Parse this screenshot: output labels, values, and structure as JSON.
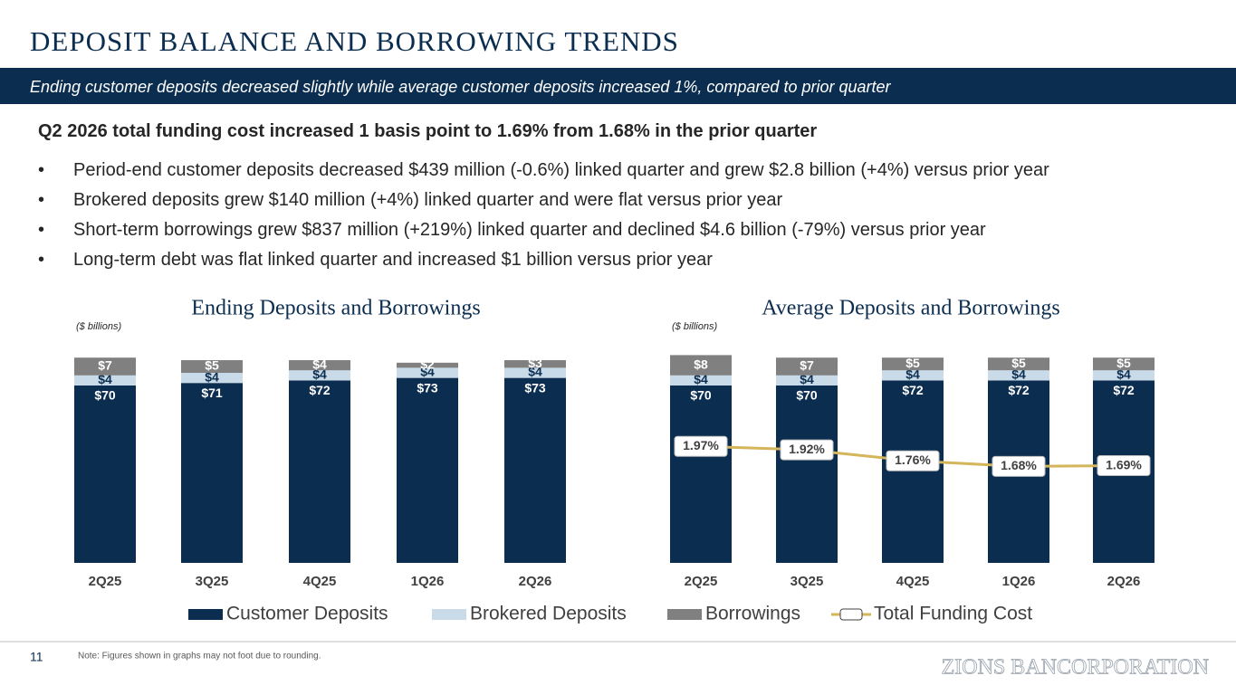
{
  "header": {
    "title": "DEPOSIT BALANCE AND BORROWING TRENDS",
    "subtitle": "Ending customer deposits decreased slightly while average customer deposits increased 1%, compared to prior quarter"
  },
  "headline": "Q2 2026 total funding cost increased 1 basis point to 1.69% from 1.68% in the prior quarter",
  "bullets": [
    "Period-end customer deposits decreased $439 million (-0.6%) linked quarter and grew $2.8 billion (+4%) versus prior year",
    "Brokered deposits grew $140 million (+4%) linked quarter and were flat versus prior year",
    "Short-term borrowings grew $837 million (+219%) linked quarter and declined $4.6 billion (-79%) versus prior year",
    "Long-term debt was flat linked quarter and increased $1 billion versus prior year"
  ],
  "chart_data": [
    {
      "type": "bar",
      "stacked": true,
      "title": "Ending Deposits and Borrowings",
      "unit_label": "($ billions)",
      "categories": [
        "2Q25",
        "3Q25",
        "4Q25",
        "1Q26",
        "2Q26"
      ],
      "series": [
        {
          "name": "Customer Deposits",
          "color": "#0b2d4f",
          "values": [
            70,
            71,
            72,
            73,
            73
          ],
          "value_labels": [
            "$70",
            "$71",
            "$72",
            "$73",
            "$73"
          ]
        },
        {
          "name": "Brokered Deposits",
          "color": "#c9dbe9",
          "values": [
            4,
            4,
            4,
            4,
            4
          ],
          "value_labels": [
            "$4",
            "$4",
            "$4",
            "$4",
            "$4"
          ]
        },
        {
          "name": "Borrowings",
          "color": "#808080",
          "values": [
            7,
            5,
            4,
            2,
            3
          ],
          "value_labels": [
            "$7",
            "$5",
            "$4",
            "$2",
            "$3"
          ]
        }
      ]
    },
    {
      "type": "combo",
      "stacked": true,
      "title": "Average Deposits and Borrowings",
      "unit_label": "($ billions)",
      "categories": [
        "2Q25",
        "3Q25",
        "4Q25",
        "1Q26",
        "2Q26"
      ],
      "series": [
        {
          "color": "#0b2d4f",
          "values": [
            70,
            70,
            72,
            72,
            72
          ],
          "value_labels": [
            "$70",
            "$70",
            "$72",
            "$72",
            "$72"
          ]
        },
        {
          "color": "#c9dbe9",
          "values": [
            4,
            4,
            4,
            4,
            4
          ],
          "value_labels": [
            "$4",
            "$4",
            "$4",
            "$4",
            "$4"
          ]
        },
        {
          "color": "#808080",
          "values": [
            8,
            7,
            5,
            5,
            5
          ],
          "value_labels": [
            "$8",
            "$7",
            "$5",
            "$5",
            "$5"
          ]
        },
        {
          "name": "Total Funding Cost",
          "type": "line",
          "axis": "y2",
          "color": "#d4b55a",
          "values": [
            1.97,
            1.92,
            1.76,
            1.68,
            1.69
          ],
          "value_labels": [
            "1.97%",
            "1.92%",
            "1.76%",
            "1.68%",
            "1.69%"
          ]
        }
      ]
    }
  ],
  "footer": {
    "page": "11",
    "note": "Note: Figures shown in graphs may not foot due to rounding.",
    "logo": "ZIONS BANCORPORATION"
  }
}
